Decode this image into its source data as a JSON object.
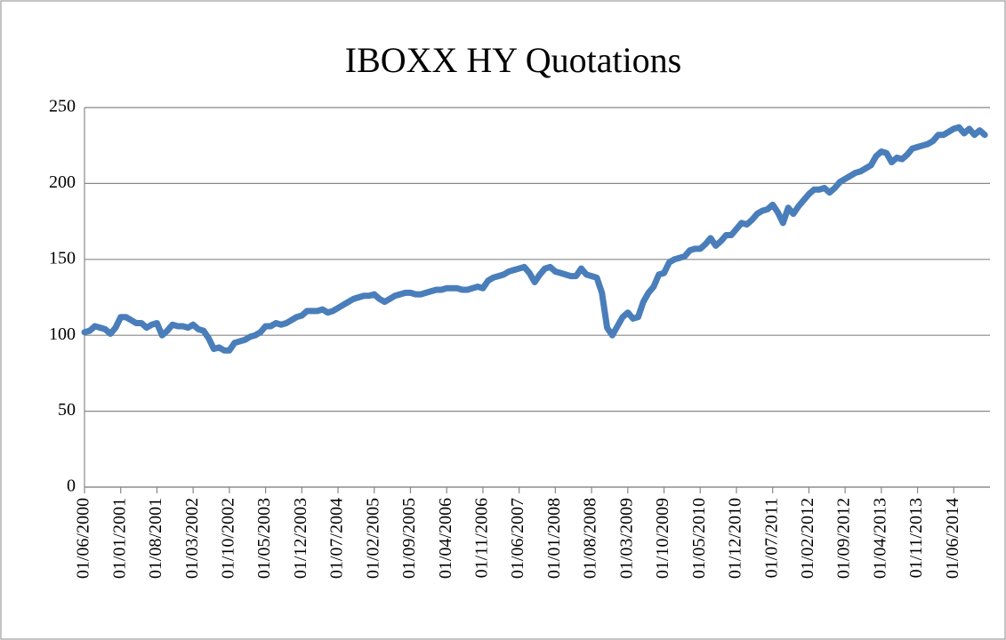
{
  "chart_data": {
    "type": "line",
    "title": "IBOXX HY Quotations",
    "categories": [
      "01/06/2000",
      null,
      null,
      null,
      null,
      null,
      null,
      "01/01/2001",
      null,
      null,
      null,
      null,
      null,
      null,
      "01/08/2001",
      null,
      null,
      null,
      null,
      null,
      null,
      "01/03/2002",
      null,
      null,
      null,
      null,
      null,
      null,
      "01/10/2002",
      null,
      null,
      null,
      null,
      null,
      null,
      "01/05/2003",
      null,
      null,
      null,
      null,
      null,
      null,
      "01/12/2003",
      null,
      null,
      null,
      null,
      null,
      null,
      "01/07/2004",
      null,
      null,
      null,
      null,
      null,
      null,
      "01/02/2005",
      null,
      null,
      null,
      null,
      null,
      null,
      "01/09/2005",
      null,
      null,
      null,
      null,
      null,
      null,
      "01/04/2006",
      null,
      null,
      null,
      null,
      null,
      null,
      "01/11/2006",
      null,
      null,
      null,
      null,
      null,
      null,
      "01/06/2007",
      null,
      null,
      null,
      null,
      null,
      null,
      "01/01/2008",
      null,
      null,
      null,
      null,
      null,
      null,
      "01/08/2008",
      null,
      null,
      null,
      null,
      null,
      null,
      "01/03/2009",
      null,
      null,
      null,
      null,
      null,
      null,
      "01/10/2009",
      null,
      null,
      null,
      null,
      null,
      null,
      "01/05/2010",
      null,
      null,
      null,
      null,
      null,
      null,
      "01/12/2010",
      null,
      null,
      null,
      null,
      null,
      null,
      "01/07/2011",
      null,
      null,
      null,
      null,
      null,
      null,
      "01/02/2012",
      null,
      null,
      null,
      null,
      null,
      null,
      "01/09/2012",
      null,
      null,
      null,
      null,
      null,
      null,
      "01/04/2013",
      null,
      null,
      null,
      null,
      null,
      null,
      "01/11/2013",
      null,
      null,
      null,
      null,
      null,
      null,
      "01/06/2014",
      null,
      null,
      null,
      null,
      null,
      null
    ],
    "values": [
      102,
      103,
      106,
      105,
      104,
      101,
      105,
      112,
      112,
      110,
      108,
      108,
      105,
      107,
      108,
      100,
      103,
      107,
      106,
      106,
      105,
      107,
      104,
      103,
      98,
      91,
      92,
      90,
      90,
      95,
      96,
      97,
      99,
      100,
      102,
      106,
      106,
      108,
      107,
      108,
      110,
      112,
      113,
      116,
      116,
      116,
      117,
      115,
      116,
      118,
      120,
      122,
      124,
      125,
      126,
      126,
      127,
      124,
      122,
      124,
      126,
      127,
      128,
      128,
      127,
      127,
      128,
      129,
      130,
      130,
      131,
      131,
      131,
      130,
      130,
      131,
      132,
      131,
      136,
      138,
      139,
      140,
      142,
      143,
      144,
      145,
      141,
      135,
      140,
      144,
      145,
      142,
      141,
      140,
      139,
      139,
      144,
      140,
      139,
      138,
      128,
      105,
      100,
      106,
      112,
      115,
      111,
      112,
      122,
      128,
      132,
      140,
      141,
      148,
      150,
      151,
      152,
      156,
      157,
      157,
      160,
      164,
      159,
      162,
      166,
      166,
      170,
      174,
      173,
      176,
      180,
      182,
      183,
      186,
      181,
      174,
      184,
      180,
      185,
      189,
      193,
      196,
      196,
      197,
      194,
      197,
      201,
      203,
      205,
      207,
      208,
      210,
      212,
      218,
      221,
      220,
      214,
      217,
      216,
      219,
      223,
      224,
      225,
      226,
      228,
      232,
      232,
      234,
      236,
      237,
      233,
      236,
      232,
      235,
      232
    ],
    "color": "#4a7ebb",
    "ylim": [
      0,
      250
    ],
    "yticks": [
      0,
      50,
      100,
      150,
      200,
      250
    ],
    "grid": true
  }
}
